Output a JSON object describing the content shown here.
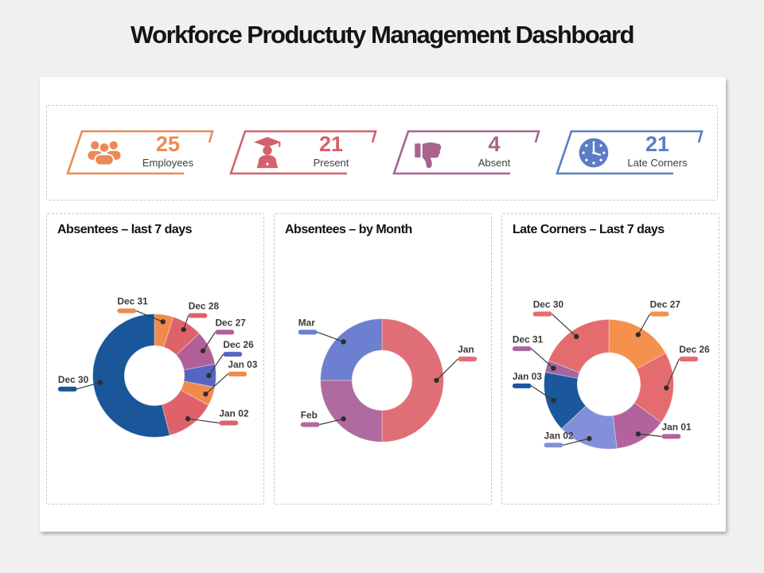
{
  "title": "Workforce Productuty Management Dashboard",
  "kpis": [
    {
      "label": "Employees",
      "value": "25",
      "color": "#EB8A55",
      "icon": "people-icon"
    },
    {
      "label": "Present",
      "value": "21",
      "color": "#D6606B",
      "icon": "graduate-laptop-icon"
    },
    {
      "label": "Absent",
      "value": "4",
      "color": "#A8638F",
      "icon": "thumbs-down-icon"
    },
    {
      "label": "Late Corners",
      "value": "21",
      "color": "#5C7CC6",
      "icon": "clock-icon"
    }
  ],
  "chart_data": [
    {
      "type": "pie",
      "variant": "donut",
      "title": "Absentees – last 7 days",
      "value_unit": "percent (estimated from arc angles, no numeric labels shown)",
      "start_angle_deg": 0,
      "clockwise": true,
      "legend_position": "callout-labels",
      "slices": [
        {
          "label": "Dec 31",
          "value": 5,
          "color": "#F08A4C"
        },
        {
          "label": "Dec 28",
          "value": 8,
          "color": "#DF626B"
        },
        {
          "label": "Dec 27",
          "value": 9,
          "color": "#B25E99"
        },
        {
          "label": "Dec 26",
          "value": 6,
          "color": "#5565C4"
        },
        {
          "label": "Jan 03",
          "value": 5,
          "color": "#F08A4C"
        },
        {
          "label": "Jan 02",
          "value": 13,
          "color": "#DF626B"
        },
        {
          "label": "Dec 30",
          "value": 54,
          "color": "#19569A"
        }
      ]
    },
    {
      "type": "pie",
      "variant": "donut",
      "title": "Absentees – by Month",
      "value_unit": "percent (estimated from arc angles, no numeric labels shown)",
      "start_angle_deg": 0,
      "clockwise": true,
      "legend_position": "callout-labels",
      "slices": [
        {
          "label": "Jan",
          "value": 50,
          "color": "#E06E77"
        },
        {
          "label": "Feb",
          "value": 25,
          "color": "#AF6BA0"
        },
        {
          "label": "Mar",
          "value": 25,
          "color": "#6D7FD0"
        }
      ]
    },
    {
      "type": "pie",
      "variant": "donut",
      "title": "Late Corners – Last 7 days",
      "value_unit": "percent (estimated from arc angles, no numeric labels shown)",
      "start_angle_deg": 0,
      "clockwise": true,
      "legend_position": "callout-labels",
      "slices": [
        {
          "label": "Dec 27",
          "value": 17,
          "color": "#F4914E"
        },
        {
          "label": "Dec 26",
          "value": 18,
          "color": "#E56C6E"
        },
        {
          "label": "Jan 01",
          "value": 13,
          "color": "#B2639D"
        },
        {
          "label": "Jan 02",
          "value": 15,
          "color": "#8190D9"
        },
        {
          "label": "Jan 03",
          "value": 15,
          "color": "#1A579B"
        },
        {
          "label": "Dec 31",
          "value": 3,
          "color": "#A5669F"
        },
        {
          "label": "Dec 30",
          "value": 19,
          "color": "#E56C6E"
        }
      ]
    }
  ]
}
